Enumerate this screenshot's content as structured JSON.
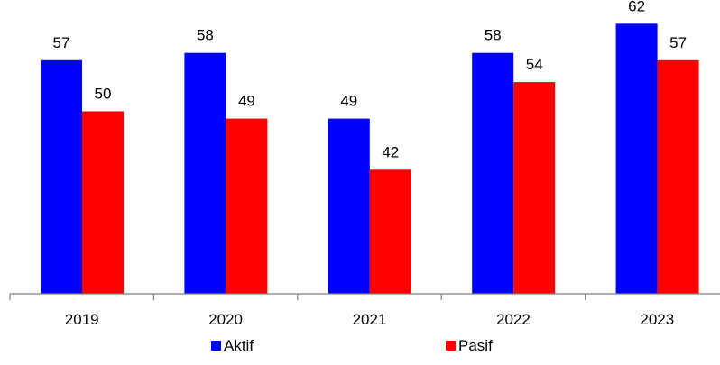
{
  "chart_data": {
    "type": "bar",
    "categories": [
      "2019",
      "2020",
      "2021",
      "2022",
      "2023"
    ],
    "series": [
      {
        "name": "Aktif",
        "color": "#0000FF",
        "values": [
          57,
          58,
          49,
          58,
          62
        ]
      },
      {
        "name": "Pasif",
        "color": "#FF0000",
        "values": [
          50,
          49,
          42,
          54,
          57
        ]
      }
    ],
    "title": "",
    "xlabel": "",
    "ylabel": "",
    "ylim": [
      25,
      65
    ],
    "grid": false,
    "legend_position": "bottom",
    "data_labels": true
  }
}
